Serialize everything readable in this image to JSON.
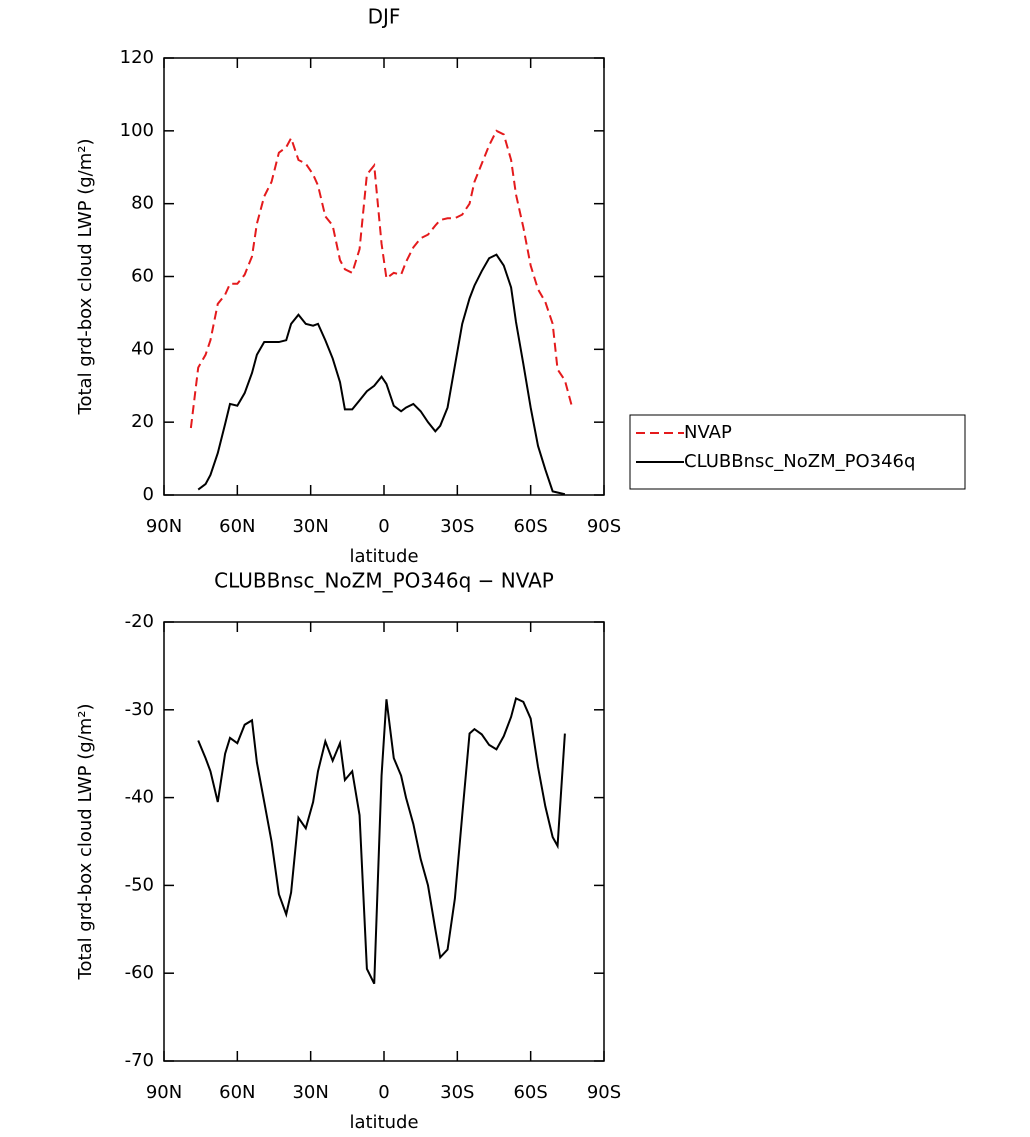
{
  "chart_data": [
    {
      "type": "line",
      "title": "DJF",
      "xlabel": "latitude",
      "ylabel": "Total grd-box cloud LWP (g/m²)",
      "xlim": [
        90,
        -90
      ],
      "xticks": [
        {
          "value": 90,
          "label": "90N"
        },
        {
          "value": 60,
          "label": "60N"
        },
        {
          "value": 30,
          "label": "30N"
        },
        0,
        {
          "value": -30,
          "label": "30S"
        },
        {
          "value": -60,
          "label": "60S"
        },
        {
          "value": -90,
          "label": "90S"
        }
      ],
      "ylim": [
        0,
        120
      ],
      "yticks": [
        0,
        20,
        40,
        60,
        80,
        100,
        120
      ],
      "legend": "right",
      "series": [
        {
          "name": "NVAP",
          "color": "#e41a1c",
          "dash": true,
          "x": [
            79,
            76,
            73,
            71,
            68,
            65,
            63,
            60,
            57,
            54,
            52,
            49,
            46,
            43,
            40,
            38,
            35,
            32,
            29,
            27,
            24,
            21,
            18,
            16,
            13,
            10,
            7,
            4,
            1,
            -1,
            -4,
            -7,
            -9,
            -12,
            -15,
            -18,
            -21,
            -23,
            -26,
            -29,
            -32,
            -35,
            -37,
            -40,
            -43,
            -46,
            -49,
            -52,
            -54,
            -57,
            -60,
            -63,
            -66,
            -69,
            -71,
            -74,
            -77
          ],
          "values": [
            18.4,
            35,
            38.5,
            42.5,
            52.5,
            55,
            58,
            58,
            60.5,
            65.5,
            74.5,
            82,
            86,
            94,
            95.5,
            98,
            92,
            91,
            88,
            85,
            76.5,
            74,
            64.5,
            62,
            61,
            67.5,
            88,
            90.5,
            69,
            59.5,
            61,
            60.5,
            64,
            68,
            70.5,
            71.5,
            74,
            75.5,
            76,
            76,
            77,
            80,
            86,
            91,
            96,
            100,
            99,
            92,
            82.5,
            73.5,
            63,
            56.5,
            53,
            47,
            34.5,
            31.5,
            24
          ]
        },
        {
          "name": "CLUBBnsc_NoZM_PO346q",
          "color": "#000000",
          "dash": false,
          "x": [
            76,
            73,
            71,
            68,
            65,
            63,
            60,
            57,
            54,
            52,
            49,
            46,
            43,
            40,
            38,
            35,
            32,
            29,
            27,
            24,
            21,
            18,
            16,
            13,
            10,
            7,
            4,
            1,
            -1,
            -4,
            -7,
            -9,
            -12,
            -15,
            -18,
            -21,
            -23,
            -26,
            -29,
            -32,
            -35,
            -37,
            -40,
            -43,
            -46,
            -49,
            -52,
            -54,
            -57,
            -60,
            -63,
            -66,
            -69,
            -74
          ],
          "values": [
            1.5,
            3,
            5.5,
            11.5,
            19.5,
            25,
            24.5,
            28,
            33.5,
            38.5,
            42,
            42,
            42,
            42.5,
            47,
            49.5,
            47,
            46.5,
            47,
            42.5,
            37.5,
            31,
            23.5,
            23.5,
            26,
            28.5,
            30,
            32.5,
            30.5,
            24.5,
            23,
            24,
            25,
            23,
            20,
            17.5,
            19,
            24,
            35.5,
            47,
            54,
            57.5,
            61.5,
            65,
            66,
            63,
            57,
            47.5,
            36,
            24,
            13.5,
            7,
            1,
            0.2
          ]
        }
      ]
    },
    {
      "type": "line",
      "title": "CLUBBnsc_NoZM_PO346q − NVAP",
      "xlabel": "latitude",
      "ylabel": "Total grd-box cloud LWP (g/m²)",
      "xlim": [
        90,
        -90
      ],
      "xticks": [
        {
          "value": 90,
          "label": "90N"
        },
        {
          "value": 60,
          "label": "60N"
        },
        {
          "value": 30,
          "label": "30N"
        },
        0,
        {
          "value": -30,
          "label": "30S"
        },
        {
          "value": -60,
          "label": "60S"
        },
        {
          "value": -90,
          "label": "90S"
        }
      ],
      "ylim": [
        -70,
        -20
      ],
      "yticks": [
        -70,
        -60,
        -50,
        -40,
        -30,
        -20
      ],
      "series": [
        {
          "color": "#000000",
          "dash": false,
          "x": [
            76,
            73,
            71,
            68,
            65,
            63,
            60,
            57,
            54,
            52,
            49,
            46,
            43,
            40,
            38,
            35,
            32,
            29,
            27,
            24,
            21,
            18,
            16,
            13,
            10,
            7,
            4,
            1,
            -1,
            -4,
            -7,
            -9,
            -12,
            -15,
            -18,
            -21,
            -23,
            -26,
            -29,
            -32,
            -35,
            -37,
            -40,
            -43,
            -46,
            -49,
            -52,
            -54,
            -57,
            -60,
            -63,
            -66,
            -69,
            -71,
            -74
          ],
          "values": [
            -33.5,
            -35.5,
            -37,
            -40.5,
            -35,
            -33.2,
            -33.8,
            -31.7,
            -31.2,
            -36,
            -40.5,
            -45,
            -51,
            -53.3,
            -50.8,
            -42.3,
            -43.5,
            -40.5,
            -37,
            -33.6,
            -35.8,
            -33.8,
            -38,
            -37,
            -42,
            -59.5,
            -61.2,
            -37.5,
            -28.8,
            -35.5,
            -37.5,
            -40,
            -43,
            -47,
            -50,
            -55,
            -58.2,
            -57.3,
            -51.5,
            -42,
            -32.7,
            -32.2,
            -32.8,
            -34,
            -34.5,
            -33,
            -30.8,
            -28.7,
            -29.1,
            -31,
            -36.5,
            -41,
            -44.5,
            -45.5,
            -32.7
          ]
        }
      ]
    }
  ]
}
